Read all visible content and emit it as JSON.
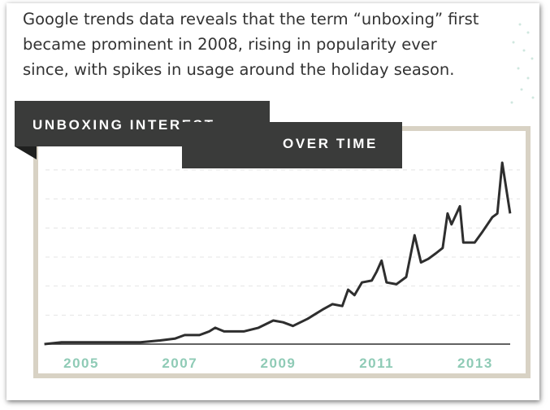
{
  "chart_data": {
    "type": "line",
    "subtitle_lines": [
      "Google trends data reveals that the term “unboxing” first",
      "became prominent in 2008, rising in popularity ever",
      "since, with spikes in usage around the holiday season."
    ],
    "title_lines": [
      "UNBOXING INTEREST",
      "OVER TIME"
    ],
    "x": [
      2004.25,
      2004.6,
      2005.0,
      2005.4,
      2005.8,
      2006.2,
      2006.6,
      2006.9,
      2007.1,
      2007.4,
      2007.6,
      2007.72,
      2007.9,
      2008.3,
      2008.6,
      2008.9,
      2009.1,
      2009.3,
      2009.6,
      2009.9,
      2010.1,
      2010.3,
      2010.42,
      2010.55,
      2010.7,
      2010.9,
      2011.0,
      2011.1,
      2011.2,
      2011.4,
      2011.6,
      2011.77,
      2011.9,
      2012.05,
      2012.2,
      2012.34,
      2012.44,
      2012.52,
      2012.69,
      2012.76,
      2012.9,
      2012.99,
      2013.15,
      2013.35,
      2013.45,
      2013.55,
      2013.71
    ],
    "values": [
      0,
      1,
      1,
      1,
      1,
      1,
      2,
      3,
      5,
      5,
      7,
      9,
      7,
      7,
      9,
      13,
      12,
      10,
      14,
      19,
      22,
      21,
      30,
      27,
      34,
      35,
      40,
      46,
      34,
      33,
      37,
      60,
      45,
      47,
      50,
      53,
      72,
      66,
      76,
      56,
      56,
      56,
      62,
      70,
      72,
      100,
      72
    ],
    "color": "#2e2e2e",
    "xlim": [
      2004.1,
      2013.85
    ],
    "xticks": [
      2005,
      2007,
      2009,
      2011,
      2013
    ],
    "ylim": [
      0,
      100
    ],
    "yticks": [
      16,
      32,
      48,
      64,
      80,
      96
    ],
    "grid": true
  }
}
